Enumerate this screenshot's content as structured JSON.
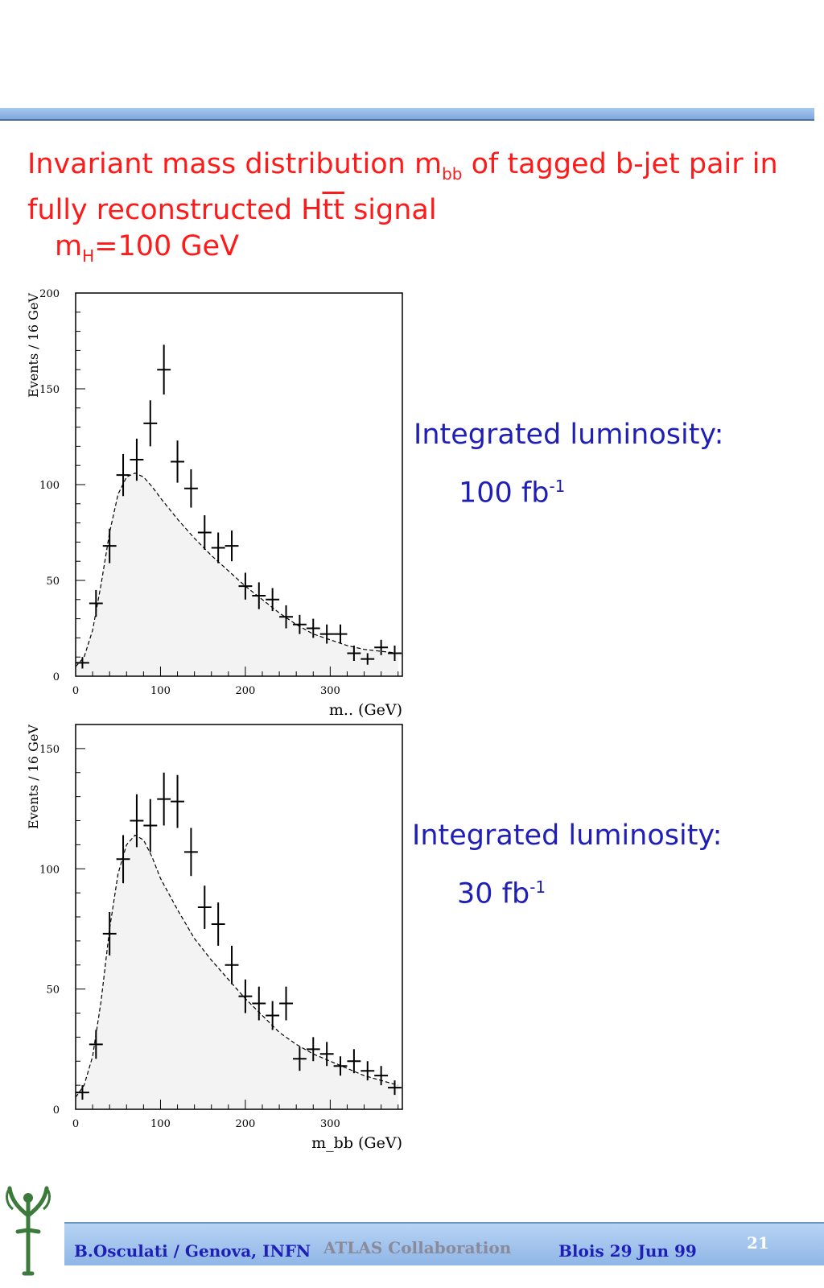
{
  "slide": {
    "title_line1_a": "Invariant mass distribution m",
    "title_line1_sub": "bb",
    "title_line1_b": " of tagged b-jet pair in",
    "title_line2_a": "fully reconstructed H",
    "title_line2_b": "tt",
    "title_line2_c": " signal",
    "title_line3_a": "m",
    "title_line3_sub": "H",
    "title_line3_b": "=100 GeV"
  },
  "lumi_top": {
    "label": "Integrated luminosity:",
    "value": "100 fb",
    "exp": "-1"
  },
  "lumi_bottom": {
    "label": "Integrated luminosity:",
    "value": "30 fb",
    "exp": "-1"
  },
  "footer": {
    "author": "B.Osculati  / Genova, INFN",
    "collaboration": "ATLAS Collaboration",
    "date": "Blois 29 Jun 99",
    "page": "21"
  },
  "colors": {
    "title": "#ff1a1a",
    "lumi": "#1f1fb8",
    "footer_author": "#1f1fb8",
    "footer_collab": "#8a8a9a",
    "footer_date": "#1f1fb8",
    "page_number": "#ffffff",
    "fill": "#f3f3f3"
  },
  "chart_data": [
    {
      "type": "scatter",
      "xlabel": "m.. (GeV)",
      "ylabel": "Events / 16 GeV",
      "xlim": [
        0,
        385
      ],
      "ylim": [
        0,
        200
      ],
      "xticks": [
        0,
        100,
        200,
        300
      ],
      "yticks": [
        0,
        50,
        100,
        150,
        200
      ],
      "x": [
        8,
        24,
        40,
        56,
        72,
        88,
        104,
        120,
        136,
        152,
        168,
        184,
        200,
        216,
        232,
        248,
        264,
        280,
        296,
        312,
        328,
        344,
        360,
        376
      ],
      "y": [
        7,
        38,
        68,
        105,
        113,
        132,
        160,
        112,
        98,
        75,
        67,
        68,
        47,
        42,
        40,
        31,
        27,
        25,
        22,
        22,
        12,
        9,
        15,
        12
      ],
      "yerr": [
        3,
        7,
        9,
        11,
        11,
        12,
        13,
        11,
        10,
        9,
        8,
        8,
        7,
        7,
        6,
        6,
        5,
        5,
        5,
        5,
        4,
        3,
        4,
        4
      ],
      "curve": {
        "x": [
          0,
          10,
          20,
          30,
          40,
          50,
          60,
          70,
          80,
          90,
          100,
          120,
          140,
          160,
          180,
          200,
          220,
          240,
          260,
          280,
          300,
          320,
          340,
          360,
          380
        ],
        "y": [
          5,
          10,
          24,
          48,
          75,
          95,
          104,
          106,
          104,
          99,
          93,
          82,
          72,
          63,
          55,
          47,
          40,
          33,
          27,
          22,
          19,
          16,
          14,
          13,
          12
        ]
      }
    },
    {
      "type": "scatter",
      "xlabel": "m_bb (GeV)",
      "ylabel": "Events / 16 GeV",
      "xlim": [
        0,
        385
      ],
      "ylim": [
        0,
        160
      ],
      "xticks": [
        0,
        100,
        200,
        300
      ],
      "yticks": [
        0,
        50,
        100,
        150
      ],
      "x": [
        8,
        24,
        40,
        56,
        72,
        88,
        104,
        120,
        136,
        152,
        168,
        184,
        200,
        216,
        232,
        248,
        264,
        280,
        296,
        312,
        328,
        344,
        360,
        376
      ],
      "y": [
        7,
        27,
        73,
        104,
        120,
        118,
        129,
        128,
        107,
        84,
        77,
        60,
        47,
        44,
        39,
        44,
        21,
        25,
        23,
        18,
        20,
        16,
        14,
        9
      ],
      "yerr": [
        3,
        6,
        9,
        10,
        11,
        11,
        11,
        11,
        10,
        9,
        9,
        8,
        7,
        7,
        6,
        7,
        5,
        5,
        5,
        4,
        5,
        4,
        4,
        3
      ],
      "curve": {
        "x": [
          0,
          10,
          20,
          30,
          40,
          50,
          60,
          70,
          80,
          90,
          100,
          120,
          140,
          160,
          180,
          200,
          220,
          240,
          260,
          280,
          300,
          320,
          340,
          360,
          380
        ],
        "y": [
          5,
          10,
          22,
          45,
          75,
          98,
          110,
          114,
          112,
          105,
          96,
          83,
          71,
          62,
          54,
          46,
          39,
          32,
          27,
          23,
          20,
          17,
          14,
          12,
          10
        ]
      }
    }
  ]
}
